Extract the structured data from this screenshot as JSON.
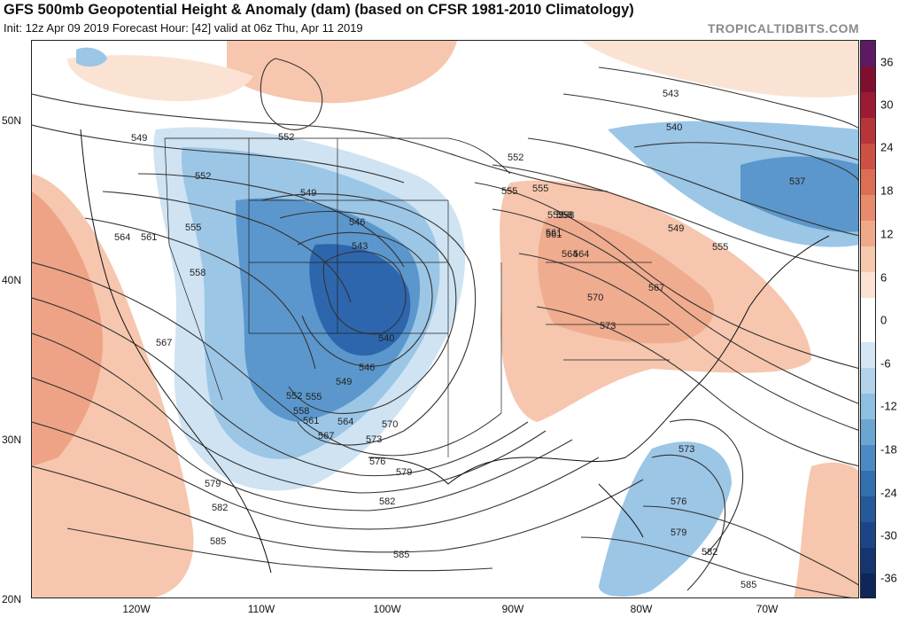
{
  "header": {
    "title": "GFS 500mb Geopotential Height & Anomaly (dam) (based on CFSR 1981-2010 Climatology)",
    "subtitle": "Init: 12z Apr 09 2019   Forecast Hour: [42]   valid at 06z Thu, Apr 11 2019",
    "credit": "TROPICALTIDBITS.COM"
  },
  "axes": {
    "lat_labels": [
      "50N",
      "40N",
      "30N",
      "20N"
    ],
    "lon_labels": [
      "120W",
      "110W",
      "100W",
      "90W",
      "80W",
      "70W"
    ]
  },
  "colorbar": {
    "labels": [
      "36",
      "30",
      "24",
      "18",
      "12",
      "6",
      "0",
      "-6",
      "-12",
      "-18",
      "-24",
      "-30",
      "-36"
    ],
    "colors": [
      "#5c1a63",
      "#7e0f2f",
      "#9c1b32",
      "#b8343b",
      "#cc5043",
      "#dc6e55",
      "#e88b6c",
      "#f0a88a",
      "#f6c8ae",
      "#fbe2d2",
      "#ffffff",
      "#ffffff",
      "#d4e6f3",
      "#b3d3ea",
      "#8fbfe0",
      "#6ba6d3",
      "#4b8ac2",
      "#346fb0",
      "#24599c",
      "#1b4587",
      "#143570",
      "#0e2658"
    ]
  },
  "contour_labels": [
    "552",
    "549",
    "552",
    "555",
    "558",
    "549",
    "546",
    "543",
    "540",
    "546",
    "549",
    "552",
    "555",
    "558",
    "561",
    "564",
    "567",
    "570",
    "573",
    "576",
    "579",
    "582",
    "585",
    "564",
    "561",
    "567",
    "555",
    "552",
    "555",
    "558",
    "561",
    "564",
    "570",
    "573",
    "567",
    "543",
    "540",
    "537",
    "549",
    "555",
    "573",
    "576",
    "579",
    "582",
    "585",
    "579",
    "582",
    "585",
    "564",
    "561",
    "558",
    "555"
  ],
  "anomaly_colors": {
    "neg_deep": "#2d66ad",
    "neg_mid": "#5b97cc",
    "neg_light": "#9cc6e6",
    "neg_faint": "#cfe3f2",
    "pos_faint": "#fbe1d2",
    "pos_light": "#f6c4aa",
    "pos_mid": "#ef9f80"
  }
}
